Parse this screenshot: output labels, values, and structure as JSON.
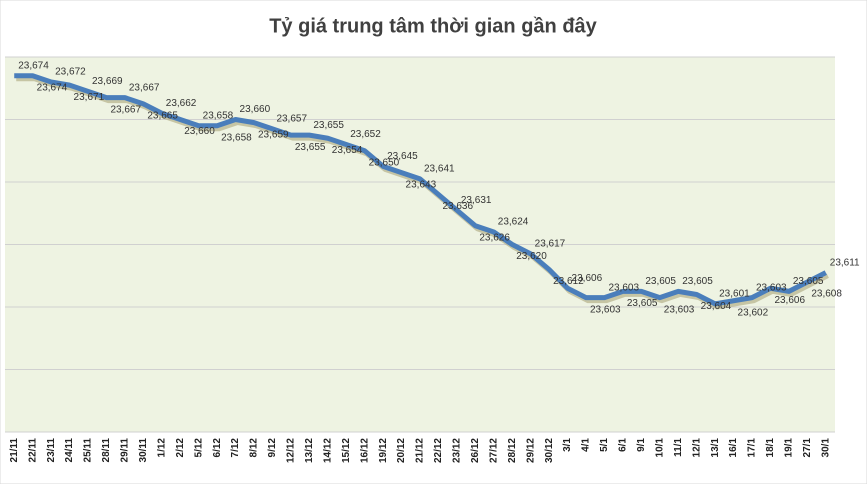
{
  "chart_data": {
    "type": "line",
    "title": "Tỷ giá trung tâm thời gian gần đây",
    "categories": [
      "21/11",
      "22/11",
      "23/11",
      "24/11",
      "25/11",
      "28/11",
      "29/11",
      "30/11",
      "1/12",
      "2/12",
      "5/12",
      "6/12",
      "7/12",
      "8/12",
      "9/12",
      "12/12",
      "13/12",
      "14/12",
      "15/12",
      "16/12",
      "19/12",
      "20/12",
      "21/12",
      "22/12",
      "23/12",
      "26/12",
      "27/12",
      "28/12",
      "29/12",
      "30/12",
      "3/1",
      "4/1",
      "5/1",
      "6/1",
      "9/1",
      "10/1",
      "11/1",
      "12/1",
      "13/1",
      "16/1",
      "17/1",
      "18/1",
      "19/1",
      "27/1",
      "30/1"
    ],
    "series": [
      {
        "color": "#4a7ebb",
        "values": [
          23674,
          23674,
          23672,
          23671,
          23669,
          23667,
          23667,
          23665,
          23662,
          23660,
          23658,
          23658,
          23660,
          23659,
          23657,
          23655,
          23655,
          23654,
          23652,
          23650,
          23645,
          23643,
          23641,
          23636,
          23631,
          23626,
          23624,
          23620,
          23617,
          23612,
          23606,
          23603,
          23603,
          23605,
          23605,
          23603,
          23605,
          23604,
          23601,
          23602,
          23603,
          23606,
          23605,
          23608,
          23611
        ],
        "value_labels": [
          "23,674",
          "23,674",
          "23,672",
          "23,671",
          "23,669",
          "23,667",
          "23,667",
          "23,665",
          "23,662",
          "23,660",
          "23,658",
          "23,658",
          "23,660",
          "23,659",
          "23,657",
          "23,655",
          "23,655",
          "23,654",
          "23,652",
          "23,650",
          "23,645",
          "23,643",
          "23,641",
          "23,636",
          "23,631",
          "23,626",
          "23,624",
          "23,620",
          "23,617",
          "23,612",
          "23,606",
          "23,603",
          "23,603",
          "23,605",
          "23,605",
          "23,603",
          "23,605",
          "23,604",
          "23,601",
          "23,602",
          "23,603",
          "23,606",
          "23,605",
          "23,608",
          "23,611"
        ]
      }
    ],
    "ylim": [
      23560,
      23680
    ],
    "yticks": [
      23560,
      23580,
      23600,
      23620,
      23640,
      23660,
      23680
    ],
    "grid": true
  }
}
